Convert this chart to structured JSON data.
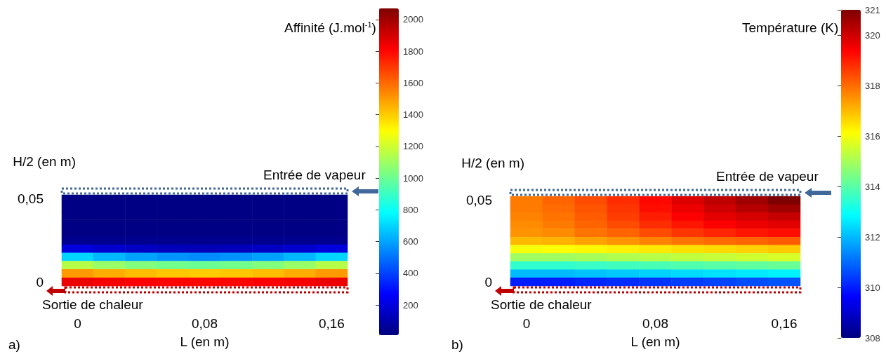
{
  "chart_data": [
    {
      "type": "heatmap",
      "xlabel": "L (en m)",
      "ylabel": "H/2 (en m)",
      "clabel": "Affinité  (J.mol$^{-1}$)",
      "annotations": [
        "Entrée de vapeur",
        "Sortie de chaleur",
        "a)"
      ],
      "categories": [
        "0",
        null,
        null,
        null,
        "0,08",
        null,
        null,
        null,
        "0,16"
      ],
      "y_categories": [
        "0,05",
        null,
        null,
        null,
        null,
        null,
        null,
        null,
        null,
        null,
        "0"
      ],
      "clim": [
        10,
        2070
      ],
      "cticks": [
        200,
        400,
        600,
        800,
        1000,
        1200,
        1400,
        1600,
        1800,
        2000
      ],
      "cells": [
        [
          20,
          20,
          20,
          20,
          20,
          20,
          20,
          20,
          20
        ],
        [
          20,
          20,
          20,
          20,
          20,
          20,
          20,
          20,
          20
        ],
        [
          20,
          20,
          20,
          20,
          20,
          20,
          20,
          20,
          20
        ],
        [
          20,
          20,
          20,
          20,
          20,
          20,
          20,
          20,
          20
        ],
        [
          20,
          20,
          20,
          20,
          20,
          20,
          20,
          20,
          20
        ],
        [
          40,
          40,
          40,
          40,
          40,
          40,
          40,
          40,
          40
        ],
        [
          200,
          168,
          144,
          128,
          120,
          128,
          144,
          168,
          200
        ],
        [
          700,
          640,
          595,
          565,
          550,
          565,
          595,
          640,
          700
        ],
        [
          1150,
          1090,
          1045,
          1015,
          1000,
          1015,
          1045,
          1090,
          1150
        ],
        [
          1500,
          1460,
          1430,
          1410,
          1400,
          1410,
          1430,
          1460,
          1500
        ],
        [
          1850,
          1830,
          1815,
          1805,
          1800,
          1805,
          1815,
          1830,
          1850
        ]
      ]
    },
    {
      "type": "heatmap",
      "xlabel": "L (en m)",
      "ylabel": "H/2 (en m)",
      "clabel": "Température  (K)",
      "annotations": [
        "Entrée de vapeur",
        "Sortie de chaleur",
        "b)"
      ],
      "categories": [
        "0",
        null,
        null,
        null,
        "0,08",
        null,
        null,
        null,
        "0,16"
      ],
      "y_categories": [
        "0,05",
        null,
        null,
        null,
        null,
        null,
        null,
        null,
        null,
        null,
        "0"
      ],
      "clim": [
        308,
        321
      ],
      "cticks": [
        308,
        310,
        312,
        314,
        316,
        318,
        320,
        321
      ],
      "cells": [
        [
          317.8,
          318.1,
          318.4,
          318.8,
          319.3,
          319.8,
          320.2,
          320.6,
          321
        ],
        [
          317.8,
          318,
          318.3,
          318.7,
          319.2,
          319.6,
          320,
          320.3,
          320.6
        ],
        [
          317.7,
          317.9,
          318.2,
          318.6,
          319,
          319.4,
          319.7,
          319.9,
          320.1
        ],
        [
          317.6,
          317.8,
          318.1,
          318.4,
          318.8,
          319.1,
          319.4,
          319.6,
          319.7
        ],
        [
          317.5,
          317.6,
          317.9,
          318.1,
          318.4,
          318.7,
          318.9,
          319.1,
          319.2
        ],
        [
          317,
          317.1,
          317.3,
          317.5,
          317.7,
          317.9,
          318,
          318.1,
          318.2
        ],
        [
          316,
          316.1,
          316.2,
          316.3,
          316.4,
          316.5,
          316.6,
          316.7,
          316.8
        ],
        [
          314.9,
          314.9,
          315,
          315.1,
          315.2,
          315.3,
          315.4,
          315.5,
          315.6
        ],
        [
          313.5,
          313.5,
          313.6,
          313.7,
          313.8,
          313.9,
          314,
          314.1,
          314.2
        ],
        [
          312,
          312,
          312.1,
          312.2,
          312.3,
          312.4,
          312.5,
          312.6,
          312.7
        ],
        [
          310,
          310,
          310.1,
          310.2,
          310.3,
          310.4,
          310.5,
          310.6,
          310.7
        ]
      ]
    }
  ]
}
